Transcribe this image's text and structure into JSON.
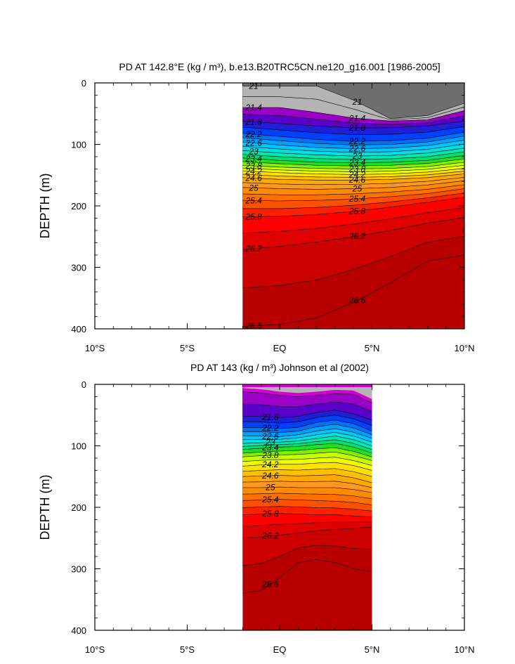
{
  "chart_data": [
    {
      "type": "contour",
      "title": "PD AT 142.8°E (kg / m³), b.e13.B20TRC5CN.ne120_g16.001 [1986-2005]",
      "ylabel": "DEPTH (m)",
      "xlabel": "",
      "xlim": [
        -10,
        10
      ],
      "ylim": [
        400,
        0
      ],
      "y_reversed": true,
      "x_ticks": [
        -10,
        -5,
        0,
        5,
        10
      ],
      "x_tick_labels": [
        "10°S",
        "5°S",
        "EQ",
        "5°N",
        "10°N"
      ],
      "y_ticks": [
        0,
        100,
        200,
        300,
        400
      ],
      "y_tick_labels": [
        "0",
        "100",
        "200",
        "300",
        "400"
      ],
      "data_extent_x": [
        -2.0,
        10.0
      ],
      "levels": [
        21.0,
        21.2,
        21.4,
        21.6,
        21.8,
        22.0,
        22.2,
        22.4,
        22.6,
        22.8,
        23.0,
        23.2,
        23.4,
        23.6,
        23.8,
        24.0,
        24.2,
        24.4,
        24.6,
        24.8,
        25.0,
        25.2,
        25.4,
        25.6,
        25.8,
        26.0,
        26.2,
        26.4,
        26.6
      ],
      "contour_depths": {
        "x": [
          -2,
          0,
          2,
          4,
          6,
          8,
          10
        ],
        "lines": [
          {
            "level": 21.0,
            "depth": [
              5,
              5,
              5,
              28,
              58,
              53,
              33
            ]
          },
          {
            "level": 21.4,
            "depth": [
              40,
              40,
              48,
              57,
              62,
              60,
              45
            ]
          },
          {
            "level": 21.8,
            "depth": [
              62,
              66,
              70,
              73,
              73,
              70,
              62
            ]
          },
          {
            "level": 22.2,
            "depth": [
              82,
              87,
              92,
              95,
              94,
              90,
              80
            ]
          },
          {
            "level": 22.6,
            "depth": [
              96,
              101,
              105,
              107,
              106,
              102,
              93
            ]
          },
          {
            "level": 23.0,
            "depth": [
              110,
              114,
              117,
              119,
              118,
              114,
              106
            ]
          },
          {
            "level": 23.4,
            "depth": [
              122,
              126,
              129,
              130,
              129,
              126,
              118
            ]
          },
          {
            "level": 23.8,
            "depth": [
              134,
              137,
              139,
              140,
              139,
              136,
              129
            ]
          },
          {
            "level": 24.2,
            "depth": [
              143,
              146,
              148,
              149,
              148,
              145,
              139
            ]
          },
          {
            "level": 24.6,
            "depth": [
              154,
              157,
              158,
              158,
              157,
              154,
              148
            ]
          },
          {
            "level": 25.0,
            "depth": [
              170,
              172,
              173,
              172,
              170,
              166,
              159
            ]
          },
          {
            "level": 25.4,
            "depth": [
              191,
              192,
              191,
              189,
              185,
              180,
              172
            ]
          },
          {
            "level": 25.8,
            "depth": [
              218,
              217,
              214,
              209,
              202,
              194,
              186
            ]
          },
          {
            "level": 26.2,
            "depth": [
              271,
              266,
              259,
              250,
              240,
              228,
              219
            ]
          },
          {
            "level": 26.6,
            "depth": [
              396,
              393,
              382,
              357,
              325,
              290,
              280
            ]
          }
        ]
      },
      "contour_labels": [
        "21",
        "21.4",
        "21.8",
        "22.2",
        "22.6",
        "23",
        "23.4",
        "23.8",
        "24.2",
        "24.6",
        "25",
        "25.4",
        "25.8",
        "26.2",
        "26.6"
      ]
    },
    {
      "type": "contour",
      "title": "PD AT 143 (kg / m³) Johnson et al (2002)",
      "ylabel": "DEPTH (m)",
      "xlabel": "",
      "xlim": [
        -10,
        10
      ],
      "ylim": [
        400,
        0
      ],
      "y_reversed": true,
      "x_ticks": [
        -10,
        -5,
        0,
        5,
        10
      ],
      "x_tick_labels": [
        "10°S",
        "5°S",
        "EQ",
        "5°N",
        "10°N"
      ],
      "y_ticks": [
        0,
        100,
        200,
        300,
        400
      ],
      "y_tick_labels": [
        "0",
        "100",
        "200",
        "300",
        "400"
      ],
      "data_extent_x": [
        -2.0,
        5.0
      ],
      "levels": [
        21.4,
        21.6,
        21.8,
        22.0,
        22.2,
        22.4,
        22.6,
        22.8,
        23.0,
        23.2,
        23.4,
        23.6,
        23.8,
        24.0,
        24.2,
        24.4,
        24.6,
        24.8,
        25.0,
        25.2,
        25.4,
        25.6,
        25.8,
        26.0,
        26.2,
        26.4,
        26.6
      ],
      "contour_depths": {
        "x": [
          -2,
          -1,
          0,
          1,
          2,
          3,
          4,
          5
        ],
        "lines": [
          {
            "level": 21.4,
            "depth": [
              12,
              14,
              18,
              20,
              18,
              15,
              16,
              30
            ]
          },
          {
            "level": 21.8,
            "depth": [
              52,
              52,
              54,
              52,
              46,
              42,
              48,
              58
            ]
          },
          {
            "level": 22.2,
            "depth": [
              70,
              70,
              72,
              70,
              62,
              58,
              64,
              76
            ]
          },
          {
            "level": 22.6,
            "depth": [
              84,
              84,
              85,
              82,
              76,
              72,
              78,
              88
            ]
          },
          {
            "level": 23.0,
            "depth": [
              96,
              95,
              94,
              92,
              88,
              84,
              90,
              100
            ]
          },
          {
            "level": 23.4,
            "depth": [
              106,
              104,
              102,
              101,
              98,
              96,
              102,
              112
            ]
          },
          {
            "level": 23.8,
            "depth": [
              118,
              116,
              115,
              114,
              112,
              110,
              116,
              124
            ]
          },
          {
            "level": 24.2,
            "depth": [
              133,
              131,
              130,
              130,
              128,
              127,
              132,
              140
            ]
          },
          {
            "level": 24.6,
            "depth": [
              150,
              149,
              148,
              149,
              148,
              147,
              152,
              160
            ]
          },
          {
            "level": 25.0,
            "depth": [
              168,
              168,
              167,
              168,
              168,
              168,
              171,
              176
            ]
          },
          {
            "level": 25.4,
            "depth": [
              189,
              188,
              187,
              188,
              189,
              190,
              192,
              196
            ]
          },
          {
            "level": 25.8,
            "depth": [
              212,
              211,
              210,
              211,
              212,
              212,
              214,
              216
            ]
          },
          {
            "level": 26.2,
            "depth": [
              250,
              248,
              245,
              242,
              238,
              236,
              234,
              232
            ]
          },
          {
            "level": 26.6,
            "depth": [
              340,
              335,
              315,
              290,
              285,
              290,
              300,
              305
            ]
          }
        ]
      },
      "contour_labels": [
        "21.8",
        "22.2",
        "22.6",
        "23",
        "23.4",
        "23.8",
        "24.2",
        "24.6",
        "25",
        "25.4",
        "25.8",
        "26.2",
        "26.6"
      ]
    }
  ],
  "colors": {
    "land_fill": "#b4b4b4",
    "low_density_fill": "#6e6e6e",
    "palette": [
      "#6e6e6e",
      "#b4b4b4",
      "#ff00ff",
      "#d400d4",
      "#9a00c8",
      "#5a00c8",
      "#1f1fd8",
      "#0040ff",
      "#0070ff",
      "#00a0ff",
      "#00c8ff",
      "#00e0e0",
      "#00e8b0",
      "#00e070",
      "#20e020",
      "#80f000",
      "#c8ff00",
      "#f0ff00",
      "#ffe000",
      "#ffc000",
      "#ffa800",
      "#ff9820",
      "#ff8c00",
      "#ff7000",
      "#ff5000",
      "#ff2000",
      "#ff0000",
      "#e00000",
      "#cc0000",
      "#b80000"
    ]
  }
}
